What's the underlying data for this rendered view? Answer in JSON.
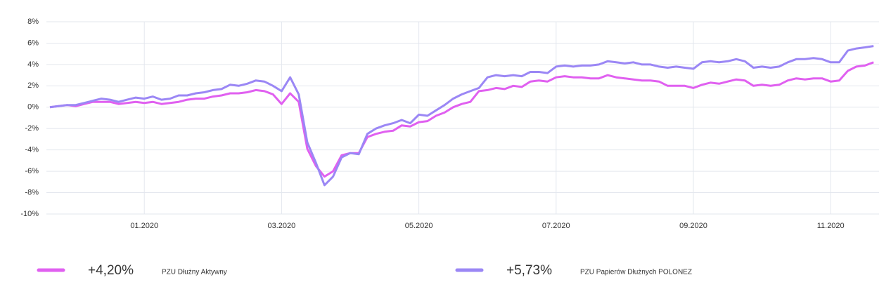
{
  "chart_data": {
    "type": "line",
    "categories": [
      null,
      null,
      null,
      null,
      null,
      null,
      null,
      null,
      null,
      null,
      null,
      "01.2020",
      null,
      null,
      null,
      null,
      null,
      null,
      null,
      null,
      null,
      null,
      null,
      null,
      null,
      null,
      null,
      "03.2020",
      null,
      null,
      null,
      null,
      null,
      null,
      null,
      null,
      null,
      null,
      null,
      null,
      null,
      null,
      null,
      "05.2020",
      null,
      null,
      null,
      null,
      null,
      null,
      null,
      null,
      null,
      null,
      null,
      null,
      null,
      null,
      null,
      "07.2020",
      null,
      null,
      null,
      null,
      null,
      null,
      null,
      null,
      null,
      null,
      null,
      null,
      null,
      null,
      null,
      "09.2020",
      null,
      null,
      null,
      null,
      null,
      null,
      null,
      null,
      null,
      null,
      null,
      null,
      null,
      null,
      null,
      "11.2020",
      null,
      null,
      null,
      null,
      null
    ],
    "series": [
      {
        "name": "PZU Dłużny Aktywny",
        "color": "#e060f0",
        "return_label": "+4,20%",
        "values": [
          0,
          0.1,
          0.2,
          0.1,
          0.3,
          0.5,
          0.5,
          0.5,
          0.3,
          0.4,
          0.5,
          0.4,
          0.5,
          0.3,
          0.4,
          0.5,
          0.7,
          0.8,
          0.8,
          1.0,
          1.1,
          1.3,
          1.3,
          1.4,
          1.6,
          1.5,
          1.2,
          0.3,
          1.3,
          0.5,
          -3.9,
          -5.5,
          -6.5,
          -6.0,
          -4.5,
          -4.3,
          -4.3,
          -2.8,
          -2.5,
          -2.3,
          -2.2,
          -1.7,
          -1.8,
          -1.4,
          -1.3,
          -0.8,
          -0.5,
          0.0,
          0.3,
          0.5,
          1.5,
          1.6,
          1.8,
          1.7,
          2.0,
          1.9,
          2.4,
          2.5,
          2.4,
          2.8,
          2.9,
          2.8,
          2.8,
          2.7,
          2.7,
          3.0,
          2.8,
          2.7,
          2.6,
          2.5,
          2.5,
          2.4,
          2.0,
          2.0,
          2.0,
          1.8,
          2.1,
          2.3,
          2.2,
          2.4,
          2.6,
          2.5,
          2.0,
          2.1,
          2.0,
          2.1,
          2.5,
          2.7,
          2.6,
          2.7,
          2.7,
          2.4,
          2.5,
          3.4,
          3.8,
          3.9,
          4.2
        ]
      },
      {
        "name": "PZU Papierów Dłużnych POLONEZ",
        "color": "#9b87f5",
        "return_label": "+5,73%",
        "values": [
          0,
          0.1,
          0.2,
          0.2,
          0.4,
          0.6,
          0.8,
          0.7,
          0.5,
          0.7,
          0.9,
          0.8,
          1.0,
          0.7,
          0.8,
          1.1,
          1.1,
          1.3,
          1.4,
          1.6,
          1.7,
          2.1,
          2.0,
          2.2,
          2.5,
          2.4,
          2.0,
          1.5,
          2.8,
          1.2,
          -3.3,
          -5.2,
          -7.3,
          -6.5,
          -4.7,
          -4.3,
          -4.4,
          -2.5,
          -2.0,
          -1.7,
          -1.5,
          -1.2,
          -1.5,
          -0.7,
          -0.8,
          -0.3,
          0.2,
          0.8,
          1.2,
          1.5,
          1.8,
          2.8,
          3.0,
          2.9,
          3.0,
          2.9,
          3.3,
          3.3,
          3.2,
          3.8,
          3.9,
          3.8,
          3.9,
          3.9,
          4.0,
          4.3,
          4.2,
          4.1,
          4.2,
          4.0,
          4.0,
          3.8,
          3.7,
          3.8,
          3.7,
          3.6,
          4.2,
          4.3,
          4.2,
          4.3,
          4.5,
          4.3,
          3.7,
          3.8,
          3.7,
          3.8,
          4.2,
          4.5,
          4.5,
          4.6,
          4.5,
          4.2,
          4.2,
          5.3,
          5.5,
          5.6,
          5.73
        ]
      }
    ],
    "ylim": [
      -10,
      8
    ],
    "yticks": [
      {
        "value": -10,
        "label": "-10%"
      },
      {
        "value": -8,
        "label": "-8%"
      },
      {
        "value": -6,
        "label": "-6%"
      },
      {
        "value": -4,
        "label": "-4%"
      },
      {
        "value": -2,
        "label": "-2%"
      },
      {
        "value": 0,
        "label": "0%"
      },
      {
        "value": 2,
        "label": "2%"
      },
      {
        "value": 4,
        "label": "4%"
      },
      {
        "value": 6,
        "label": "6%"
      },
      {
        "value": 8,
        "label": "8%"
      }
    ],
    "grid": true
  }
}
